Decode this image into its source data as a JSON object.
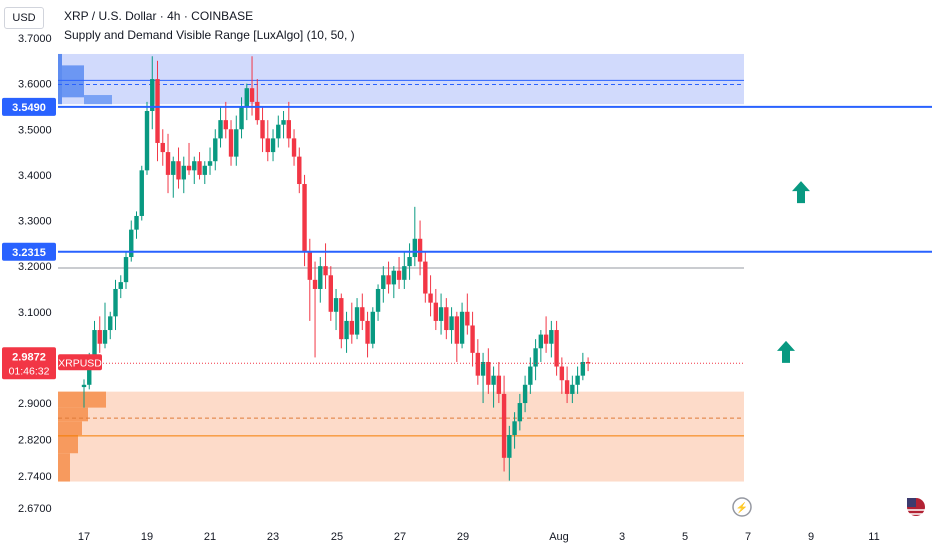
{
  "header": {
    "currency_button": "USD",
    "line1": "XRP / U.S. Dollar · 4h · COINBASE",
    "line2": "Supply and Demand Visible Range [LuxAlgo] (10, 50, )"
  },
  "chart_data": {
    "type": "candlestick",
    "symbol": "XRPUSD",
    "ylim": [
      2.67,
      3.72
    ],
    "y_ticks": [
      "3.7000",
      "3.6000",
      "3.5000",
      "3.4000",
      "3.3000",
      "3.2000",
      "3.1000",
      "2.9000",
      "2.8200",
      "2.7400",
      "2.6700"
    ],
    "x_ticks": [
      "17",
      "19",
      "21",
      "23",
      "25",
      "27",
      "29",
      "Aug",
      "3",
      "5",
      "7",
      "9",
      "11"
    ],
    "current_price": {
      "value": 2.9872,
      "label": "2.9872",
      "countdown": "01:46:32",
      "ticker_label": "XRPUSD"
    },
    "horizontal_levels": [
      {
        "value": 3.549,
        "label": "3.5490",
        "color": "#2962ff"
      },
      {
        "value": 3.2315,
        "label": "3.2315",
        "color": "#2962ff"
      }
    ],
    "zones": [
      {
        "name": "supply",
        "from": 3.555,
        "to": 3.665,
        "color": "#c9d3fb",
        "avg_line": 3.598,
        "mid_line": 3.607
      },
      {
        "name": "demand",
        "from": 2.728,
        "to": 2.925,
        "color": "#fdd5bf",
        "avg_line": 2.867,
        "mid_line": 2.828
      }
    ],
    "gray_level": 3.196,
    "arrows": [
      {
        "x_day": 8.8,
        "y": 3.36,
        "direction": "up",
        "color": "#089981"
      },
      {
        "x_day": 8.2,
        "y": 3.01,
        "direction": "up",
        "color": "#089981"
      }
    ],
    "series": [
      {
        "x_start_day": 16.0,
        "interval_days": 0.1667,
        "ohlc": [
          [
            2.935,
            2.952,
            2.89,
            2.94
          ],
          [
            2.94,
            3.01,
            2.93,
            3.0
          ],
          [
            3.0,
            3.08,
            2.99,
            3.06
          ],
          [
            3.06,
            3.09,
            3.01,
            3.03
          ],
          [
            3.03,
            3.12,
            3.02,
            3.06
          ],
          [
            3.06,
            3.1,
            3.04,
            3.09
          ],
          [
            3.09,
            3.17,
            3.06,
            3.15
          ],
          [
            3.15,
            3.18,
            3.13,
            3.165
          ],
          [
            3.165,
            3.23,
            3.15,
            3.22
          ],
          [
            3.22,
            3.3,
            3.21,
            3.28
          ],
          [
            3.28,
            3.32,
            3.26,
            3.31
          ],
          [
            3.31,
            3.42,
            3.3,
            3.41
          ],
          [
            3.41,
            3.56,
            3.4,
            3.54
          ],
          [
            3.54,
            3.66,
            3.5,
            3.61
          ],
          [
            3.61,
            3.65,
            3.43,
            3.47
          ],
          [
            3.47,
            3.5,
            3.42,
            3.45
          ],
          [
            3.45,
            3.49,
            3.36,
            3.4
          ],
          [
            3.4,
            3.44,
            3.35,
            3.43
          ],
          [
            3.43,
            3.46,
            3.37,
            3.39
          ],
          [
            3.39,
            3.44,
            3.36,
            3.42
          ],
          [
            3.42,
            3.47,
            3.4,
            3.41
          ],
          [
            3.41,
            3.44,
            3.38,
            3.43
          ],
          [
            3.43,
            3.45,
            3.39,
            3.4
          ],
          [
            3.4,
            3.43,
            3.38,
            3.42
          ],
          [
            3.42,
            3.46,
            3.4,
            3.43
          ],
          [
            3.43,
            3.5,
            3.41,
            3.48
          ],
          [
            3.48,
            3.55,
            3.46,
            3.52
          ],
          [
            3.52,
            3.56,
            3.48,
            3.5
          ],
          [
            3.5,
            3.52,
            3.42,
            3.44
          ],
          [
            3.44,
            3.53,
            3.42,
            3.5
          ],
          [
            3.5,
            3.57,
            3.48,
            3.55
          ],
          [
            3.55,
            3.6,
            3.52,
            3.59
          ],
          [
            3.59,
            3.66,
            3.53,
            3.56
          ],
          [
            3.56,
            3.61,
            3.51,
            3.52
          ],
          [
            3.52,
            3.55,
            3.45,
            3.48
          ],
          [
            3.48,
            3.52,
            3.43,
            3.45
          ],
          [
            3.45,
            3.5,
            3.43,
            3.48
          ],
          [
            3.48,
            3.53,
            3.46,
            3.51
          ],
          [
            3.51,
            3.54,
            3.48,
            3.52
          ],
          [
            3.52,
            3.56,
            3.46,
            3.48
          ],
          [
            3.48,
            3.5,
            3.42,
            3.44
          ],
          [
            3.44,
            3.46,
            3.36,
            3.38
          ],
          [
            3.38,
            3.4,
            3.2,
            3.23
          ],
          [
            3.23,
            3.26,
            3.08,
            3.17
          ],
          [
            3.17,
            3.21,
            3.0,
            3.15
          ],
          [
            3.15,
            3.22,
            3.12,
            3.2
          ],
          [
            3.2,
            3.25,
            3.15,
            3.18
          ],
          [
            3.18,
            3.2,
            3.08,
            3.1
          ],
          [
            3.1,
            3.15,
            3.06,
            3.13
          ],
          [
            3.13,
            3.14,
            3.02,
            3.04
          ],
          [
            3.04,
            3.1,
            3.01,
            3.08
          ],
          [
            3.08,
            3.12,
            3.03,
            3.05
          ],
          [
            3.05,
            3.13,
            3.04,
            3.11
          ],
          [
            3.11,
            3.14,
            3.06,
            3.08
          ],
          [
            3.08,
            3.1,
            3.0,
            3.03
          ],
          [
            3.03,
            3.11,
            3.02,
            3.1
          ],
          [
            3.1,
            3.16,
            3.08,
            3.15
          ],
          [
            3.15,
            3.2,
            3.12,
            3.18
          ],
          [
            3.18,
            3.21,
            3.14,
            3.16
          ],
          [
            3.16,
            3.2,
            3.13,
            3.19
          ],
          [
            3.19,
            3.22,
            3.15,
            3.17
          ],
          [
            3.17,
            3.23,
            3.15,
            3.2
          ],
          [
            3.2,
            3.25,
            3.17,
            3.22
          ],
          [
            3.22,
            3.33,
            3.2,
            3.26
          ],
          [
            3.26,
            3.3,
            3.18,
            3.21
          ],
          [
            3.21,
            3.23,
            3.12,
            3.14
          ],
          [
            3.14,
            3.18,
            3.09,
            3.12
          ],
          [
            3.12,
            3.15,
            3.06,
            3.08
          ],
          [
            3.08,
            3.14,
            3.05,
            3.11
          ],
          [
            3.11,
            3.13,
            3.04,
            3.06
          ],
          [
            3.06,
            3.11,
            3.03,
            3.09
          ],
          [
            3.09,
            3.1,
            2.99,
            3.03
          ],
          [
            3.03,
            3.12,
            3.02,
            3.1
          ],
          [
            3.1,
            3.14,
            3.05,
            3.07
          ],
          [
            3.07,
            3.1,
            2.98,
            3.01
          ],
          [
            3.01,
            3.04,
            2.94,
            2.96
          ],
          [
            2.96,
            3.01,
            2.9,
            2.99
          ],
          [
            2.99,
            3.02,
            2.92,
            2.94
          ],
          [
            2.94,
            2.98,
            2.89,
            2.96
          ],
          [
            2.96,
            2.99,
            2.9,
            2.92
          ],
          [
            2.92,
            2.96,
            2.75,
            2.78
          ],
          [
            2.78,
            2.85,
            2.73,
            2.83
          ],
          [
            2.83,
            2.88,
            2.8,
            2.86
          ],
          [
            2.86,
            2.92,
            2.84,
            2.9
          ],
          [
            2.9,
            2.96,
            2.88,
            2.94
          ],
          [
            2.94,
            3.0,
            2.92,
            2.98
          ],
          [
            2.98,
            3.04,
            2.95,
            3.02
          ],
          [
            3.02,
            3.06,
            2.99,
            3.05
          ],
          [
            3.05,
            3.09,
            3.01,
            3.03
          ],
          [
            3.03,
            3.08,
            3.0,
            3.06
          ],
          [
            3.06,
            3.08,
            2.96,
            2.98
          ],
          [
            2.98,
            3.0,
            2.92,
            2.95
          ],
          [
            2.95,
            2.98,
            2.9,
            2.92
          ],
          [
            2.92,
            2.96,
            2.9,
            2.94
          ],
          [
            2.94,
            2.98,
            2.92,
            2.96
          ],
          [
            2.96,
            3.01,
            2.95,
            2.99
          ],
          [
            2.99,
            3.0,
            2.97,
            2.987
          ]
        ]
      }
    ],
    "colors": {
      "up": "#089981",
      "down": "#f23645"
    }
  }
}
